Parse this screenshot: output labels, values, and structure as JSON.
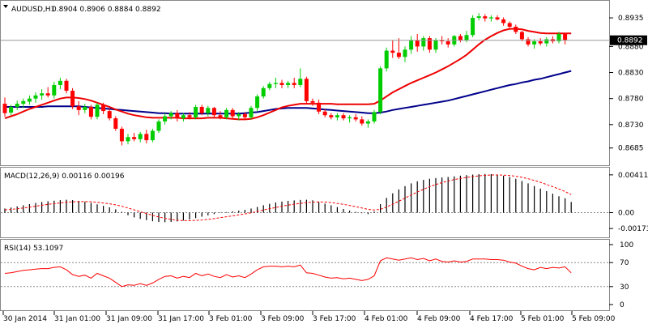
{
  "price_panel": {
    "title": "AUDUSD,H1",
    "ohlc": "0.8904 0.8906 0.8884 0.8892",
    "current_price": "0.8892",
    "right_axis_ticks": [
      "0.8935",
      "0.8880",
      "0.8830",
      "0.8780",
      "0.8730",
      "0.8685"
    ]
  },
  "macd_panel": {
    "title": "MACD(12,26,9) 0.00116 0.00196",
    "right_axis_ticks": [
      "0.00411",
      "0.00",
      "-0.00173"
    ]
  },
  "rsi_panel": {
    "title": "RSI(14) 53.1097",
    "right_axis_ticks": [
      "100",
      "70",
      "30",
      "0"
    ]
  },
  "time_axis": [
    "30 Jan 2014",
    "31 Jan 01:00",
    "31 Jan 09:00",
    "31 Jan 17:00",
    "3 Feb 01:00",
    "3 Feb 09:00",
    "3 Feb 17:00",
    "4 Feb 01:00",
    "4 Feb 09:00",
    "4 Feb 17:00",
    "5 Feb 01:00",
    "5 Feb 09:00"
  ],
  "colors": {
    "bull": "#00cc00",
    "bear": "#ff0000",
    "fast_ma": "#ee0000",
    "slow_ma": "#00008b",
    "histogram": "#000000",
    "signal": "#ff0000",
    "rsi": "#ff0000",
    "grid": "#888888"
  },
  "chart_data": [
    {
      "type": "candlestick",
      "title": "AUDUSD,H1",
      "ylim": [
        0.8655,
        0.896
      ],
      "candles": [
        {
          "o": 0.877,
          "h": 0.8782,
          "l": 0.8745,
          "c": 0.8752
        },
        {
          "o": 0.8753,
          "h": 0.8768,
          "l": 0.8748,
          "c": 0.8764
        },
        {
          "o": 0.8764,
          "h": 0.8776,
          "l": 0.8758,
          "c": 0.877
        },
        {
          "o": 0.877,
          "h": 0.878,
          "l": 0.8762,
          "c": 0.8775
        },
        {
          "o": 0.8774,
          "h": 0.8786,
          "l": 0.8768,
          "c": 0.878
        },
        {
          "o": 0.878,
          "h": 0.8792,
          "l": 0.8772,
          "c": 0.8786
        },
        {
          "o": 0.8786,
          "h": 0.8798,
          "l": 0.8778,
          "c": 0.879
        },
        {
          "o": 0.879,
          "h": 0.8802,
          "l": 0.8782,
          "c": 0.8786
        },
        {
          "o": 0.8786,
          "h": 0.8812,
          "l": 0.878,
          "c": 0.8806
        },
        {
          "o": 0.8806,
          "h": 0.882,
          "l": 0.8798,
          "c": 0.8814
        },
        {
          "o": 0.8814,
          "h": 0.8818,
          "l": 0.879,
          "c": 0.8795
        },
        {
          "o": 0.8795,
          "h": 0.88,
          "l": 0.876,
          "c": 0.8765
        },
        {
          "o": 0.8765,
          "h": 0.8775,
          "l": 0.8748,
          "c": 0.8758
        },
        {
          "o": 0.8758,
          "h": 0.877,
          "l": 0.8752,
          "c": 0.8764
        },
        {
          "o": 0.8764,
          "h": 0.8768,
          "l": 0.874,
          "c": 0.8745
        },
        {
          "o": 0.8745,
          "h": 0.8772,
          "l": 0.874,
          "c": 0.8768
        },
        {
          "o": 0.8768,
          "h": 0.8772,
          "l": 0.875,
          "c": 0.8756
        },
        {
          "o": 0.8756,
          "h": 0.876,
          "l": 0.8738,
          "c": 0.8742
        },
        {
          "o": 0.8742,
          "h": 0.8746,
          "l": 0.8718,
          "c": 0.8722
        },
        {
          "o": 0.8722,
          "h": 0.8726,
          "l": 0.869,
          "c": 0.8698
        },
        {
          "o": 0.8698,
          "h": 0.8712,
          "l": 0.8692,
          "c": 0.8706
        },
        {
          "o": 0.8706,
          "h": 0.8714,
          "l": 0.8698,
          "c": 0.8702
        },
        {
          "o": 0.8702,
          "h": 0.8716,
          "l": 0.8696,
          "c": 0.8712
        },
        {
          "o": 0.8712,
          "h": 0.872,
          "l": 0.8694,
          "c": 0.87
        },
        {
          "o": 0.87,
          "h": 0.8722,
          "l": 0.8696,
          "c": 0.8718
        },
        {
          "o": 0.8718,
          "h": 0.874,
          "l": 0.8714,
          "c": 0.8736
        },
        {
          "o": 0.8736,
          "h": 0.8752,
          "l": 0.873,
          "c": 0.8746
        },
        {
          "o": 0.8746,
          "h": 0.8756,
          "l": 0.874,
          "c": 0.8752
        },
        {
          "o": 0.8752,
          "h": 0.8758,
          "l": 0.8736,
          "c": 0.8742
        },
        {
          "o": 0.8742,
          "h": 0.8752,
          "l": 0.8736,
          "c": 0.8748
        },
        {
          "o": 0.8748,
          "h": 0.8754,
          "l": 0.874,
          "c": 0.8744
        },
        {
          "o": 0.8744,
          "h": 0.8768,
          "l": 0.874,
          "c": 0.8764
        },
        {
          "o": 0.8764,
          "h": 0.8768,
          "l": 0.8748,
          "c": 0.8752
        },
        {
          "o": 0.8752,
          "h": 0.8766,
          "l": 0.8746,
          "c": 0.8762
        },
        {
          "o": 0.8762,
          "h": 0.8764,
          "l": 0.8744,
          "c": 0.8748
        },
        {
          "o": 0.8748,
          "h": 0.8756,
          "l": 0.874,
          "c": 0.8744
        },
        {
          "o": 0.8744,
          "h": 0.8762,
          "l": 0.874,
          "c": 0.8758
        },
        {
          "o": 0.8758,
          "h": 0.8762,
          "l": 0.8742,
          "c": 0.8746
        },
        {
          "o": 0.8746,
          "h": 0.8754,
          "l": 0.8738,
          "c": 0.875
        },
        {
          "o": 0.875,
          "h": 0.8754,
          "l": 0.874,
          "c": 0.8744
        },
        {
          "o": 0.8744,
          "h": 0.8766,
          "l": 0.874,
          "c": 0.8762
        },
        {
          "o": 0.8762,
          "h": 0.8788,
          "l": 0.8756,
          "c": 0.8784
        },
        {
          "o": 0.8784,
          "h": 0.8804,
          "l": 0.878,
          "c": 0.88
        },
        {
          "o": 0.88,
          "h": 0.8812,
          "l": 0.8796,
          "c": 0.8808
        },
        {
          "o": 0.8808,
          "h": 0.882,
          "l": 0.88,
          "c": 0.881
        },
        {
          "o": 0.881,
          "h": 0.8816,
          "l": 0.88,
          "c": 0.8806
        },
        {
          "o": 0.8806,
          "h": 0.8814,
          "l": 0.88,
          "c": 0.881
        },
        {
          "o": 0.881,
          "h": 0.882,
          "l": 0.88,
          "c": 0.8806
        },
        {
          "o": 0.8806,
          "h": 0.8838,
          "l": 0.8802,
          "c": 0.8818
        },
        {
          "o": 0.8818,
          "h": 0.8822,
          "l": 0.877,
          "c": 0.8775
        },
        {
          "o": 0.8775,
          "h": 0.878,
          "l": 0.8766,
          "c": 0.8772
        },
        {
          "o": 0.8772,
          "h": 0.8778,
          "l": 0.875,
          "c": 0.8755
        },
        {
          "o": 0.8755,
          "h": 0.876,
          "l": 0.8744,
          "c": 0.8748
        },
        {
          "o": 0.8748,
          "h": 0.8752,
          "l": 0.874,
          "c": 0.8744
        },
        {
          "o": 0.8744,
          "h": 0.8752,
          "l": 0.8738,
          "c": 0.8748
        },
        {
          "o": 0.8748,
          "h": 0.8752,
          "l": 0.8738,
          "c": 0.8742
        },
        {
          "o": 0.8742,
          "h": 0.8748,
          "l": 0.8734,
          "c": 0.8744
        },
        {
          "o": 0.8744,
          "h": 0.875,
          "l": 0.8736,
          "c": 0.874
        },
        {
          "o": 0.874,
          "h": 0.8746,
          "l": 0.8728,
          "c": 0.8732
        },
        {
          "o": 0.8732,
          "h": 0.874,
          "l": 0.8724,
          "c": 0.8736
        },
        {
          "o": 0.8736,
          "h": 0.8758,
          "l": 0.8732,
          "c": 0.8754
        },
        {
          "o": 0.8754,
          "h": 0.8842,
          "l": 0.875,
          "c": 0.8838
        },
        {
          "o": 0.8838,
          "h": 0.8878,
          "l": 0.8832,
          "c": 0.8872
        },
        {
          "o": 0.8872,
          "h": 0.8892,
          "l": 0.8858,
          "c": 0.8868
        },
        {
          "o": 0.8868,
          "h": 0.8896,
          "l": 0.8856,
          "c": 0.886
        },
        {
          "o": 0.886,
          "h": 0.888,
          "l": 0.885,
          "c": 0.8874
        },
        {
          "o": 0.8874,
          "h": 0.89,
          "l": 0.8866,
          "c": 0.8892
        },
        {
          "o": 0.8892,
          "h": 0.8904,
          "l": 0.887,
          "c": 0.888
        },
        {
          "o": 0.888,
          "h": 0.89,
          "l": 0.8872,
          "c": 0.8896
        },
        {
          "o": 0.8896,
          "h": 0.89,
          "l": 0.8868,
          "c": 0.8874
        },
        {
          "o": 0.8874,
          "h": 0.8896,
          "l": 0.8868,
          "c": 0.8892
        },
        {
          "o": 0.8892,
          "h": 0.89,
          "l": 0.8884,
          "c": 0.889
        },
        {
          "o": 0.889,
          "h": 0.8896,
          "l": 0.8878,
          "c": 0.8884
        },
        {
          "o": 0.8884,
          "h": 0.8902,
          "l": 0.888,
          "c": 0.89
        },
        {
          "o": 0.89,
          "h": 0.8904,
          "l": 0.8888,
          "c": 0.8892
        },
        {
          "o": 0.8892,
          "h": 0.891,
          "l": 0.8888,
          "c": 0.8902
        },
        {
          "o": 0.8902,
          "h": 0.894,
          "l": 0.8898,
          "c": 0.8935
        },
        {
          "o": 0.8935,
          "h": 0.8944,
          "l": 0.893,
          "c": 0.8938
        },
        {
          "o": 0.8938,
          "h": 0.8942,
          "l": 0.8928,
          "c": 0.8934
        },
        {
          "o": 0.8934,
          "h": 0.894,
          "l": 0.8928,
          "c": 0.8936
        },
        {
          "o": 0.8936,
          "h": 0.894,
          "l": 0.893,
          "c": 0.8932
        },
        {
          "o": 0.8932,
          "h": 0.8936,
          "l": 0.892,
          "c": 0.8925
        },
        {
          "o": 0.8925,
          "h": 0.8928,
          "l": 0.8914,
          "c": 0.8918
        },
        {
          "o": 0.8918,
          "h": 0.8922,
          "l": 0.8904,
          "c": 0.8908
        },
        {
          "o": 0.8908,
          "h": 0.891,
          "l": 0.889,
          "c": 0.8894
        },
        {
          "o": 0.8894,
          "h": 0.8898,
          "l": 0.888,
          "c": 0.8884
        },
        {
          "o": 0.8884,
          "h": 0.8894,
          "l": 0.8876,
          "c": 0.889
        },
        {
          "o": 0.889,
          "h": 0.8896,
          "l": 0.8882,
          "c": 0.8886
        },
        {
          "o": 0.8886,
          "h": 0.8898,
          "l": 0.888,
          "c": 0.8894
        },
        {
          "o": 0.8894,
          "h": 0.89,
          "l": 0.8886,
          "c": 0.889
        },
        {
          "o": 0.889,
          "h": 0.8908,
          "l": 0.8886,
          "c": 0.8904
        },
        {
          "o": 0.8904,
          "h": 0.8906,
          "l": 0.8884,
          "c": 0.8892
        }
      ],
      "fast_ma": [
        0.8742,
        0.8746,
        0.875,
        0.8755,
        0.876,
        0.8764,
        0.8768,
        0.8772,
        0.8776,
        0.878,
        0.8782,
        0.8782,
        0.8781,
        0.8779,
        0.8776,
        0.8772,
        0.8768,
        0.8764,
        0.8759,
        0.8755,
        0.8751,
        0.8748,
        0.8746,
        0.8744,
        0.8743,
        0.8743,
        0.8743,
        0.8743,
        0.8743,
        0.8742,
        0.8742,
        0.8742,
        0.8742,
        0.8743,
        0.8743,
        0.8743,
        0.8742,
        0.8741,
        0.874,
        0.874,
        0.8741,
        0.8744,
        0.8748,
        0.8753,
        0.8758,
        0.8763,
        0.8766,
        0.8768,
        0.877,
        0.877,
        0.877,
        0.877,
        0.877,
        0.877,
        0.8769,
        0.8769,
        0.8769,
        0.8769,
        0.8769,
        0.8769,
        0.877,
        0.8776,
        0.8784,
        0.8792,
        0.8798,
        0.8804,
        0.881,
        0.8815,
        0.882,
        0.8825,
        0.883,
        0.8836,
        0.8842,
        0.8849,
        0.8856,
        0.8864,
        0.8874,
        0.8884,
        0.8893,
        0.89,
        0.8906,
        0.8911,
        0.8914,
        0.8914,
        0.8913,
        0.891,
        0.8908,
        0.8906,
        0.8905,
        0.8905,
        0.8905,
        0.8905,
        0.8905
      ],
      "slow_ma": [
        0.8764,
        0.8764,
        0.8764,
        0.8764,
        0.8764,
        0.8764,
        0.8764,
        0.8765,
        0.8765,
        0.8765,
        0.8765,
        0.8765,
        0.8765,
        0.8764,
        0.8763,
        0.8762,
        0.8761,
        0.876,
        0.8759,
        0.8758,
        0.8757,
        0.8756,
        0.8755,
        0.8754,
        0.8753,
        0.8752,
        0.8752,
        0.8751,
        0.8751,
        0.8751,
        0.8751,
        0.8751,
        0.8751,
        0.8751,
        0.8751,
        0.8751,
        0.8751,
        0.8751,
        0.8751,
        0.8752,
        0.8753,
        0.8754,
        0.8756,
        0.8758,
        0.876,
        0.8761,
        0.8762,
        0.8762,
        0.8762,
        0.8762,
        0.8761,
        0.876,
        0.8759,
        0.8758,
        0.8757,
        0.8756,
        0.8755,
        0.8754,
        0.8753,
        0.8752,
        0.8752,
        0.8753,
        0.8755,
        0.8758,
        0.876,
        0.8762,
        0.8764,
        0.8766,
        0.8768,
        0.877,
        0.8772,
        0.8774,
        0.8776,
        0.8779,
        0.8782,
        0.8785,
        0.8788,
        0.8791,
        0.8794,
        0.8797,
        0.88,
        0.8803,
        0.8806,
        0.8808,
        0.8811,
        0.8813,
        0.8816,
        0.8818,
        0.8821,
        0.8824,
        0.8827,
        0.883,
        0.8833
      ]
    },
    {
      "type": "bar",
      "title": "MACD(12,26,9) 0.00116 0.00196",
      "ylim": [
        -0.0026,
        0.00445
      ],
      "histogram": [
        0.00045,
        0.00055,
        0.00068,
        0.0008,
        0.00092,
        0.00105,
        0.00115,
        0.00124,
        0.0013,
        0.00136,
        0.0014,
        0.00136,
        0.00128,
        0.00118,
        0.00106,
        0.0009,
        0.00074,
        0.00058,
        0.00036,
        8e-05,
        -0.00028,
        -0.00052,
        -0.00068,
        -0.00082,
        -0.00094,
        -0.00102,
        -0.00104,
        -0.00102,
        -0.00096,
        -0.00086,
        -0.00074,
        -0.0006,
        -0.00044,
        -0.0003,
        -0.00016,
        -4e-05,
        6e-05,
        0.00014,
        0.00022,
        0.0003,
        0.00044,
        0.00062,
        0.0008,
        0.00096,
        0.0011,
        0.0012,
        0.00128,
        0.00133,
        0.00138,
        0.0014,
        0.00134,
        0.00116,
        0.00098,
        0.0008,
        0.0006,
        0.0004,
        0.00022,
        8e-05,
        -6e-05,
        -0.00016,
        0.00012,
        0.00092,
        0.0016,
        0.0021,
        0.00252,
        0.00288,
        0.00318,
        0.0034,
        0.00356,
        0.00368,
        0.00376,
        0.00382,
        0.00388,
        0.00395,
        0.00402,
        0.00408,
        0.00414,
        0.00418,
        0.0042,
        0.00418,
        0.00412,
        0.00402,
        0.00388,
        0.00368,
        0.00344,
        0.00318,
        0.0029,
        0.00262,
        0.00234,
        0.00206,
        0.00178,
        0.00156,
        0.00116
      ],
      "signal": [
        0.0003,
        0.00035,
        0.00042,
        0.0005,
        0.0006,
        0.0007,
        0.0008,
        0.0009,
        0.00098,
        0.00106,
        0.00113,
        0.00118,
        0.0012,
        0.0012,
        0.00118,
        0.00113,
        0.00105,
        0.00096,
        0.00085,
        0.0007,
        0.0005,
        0.0003,
        0.0001,
        -0.0001,
        -0.0003,
        -0.00048,
        -0.00062,
        -0.00074,
        -0.00083,
        -0.00087,
        -0.00087,
        -0.00085,
        -0.0008,
        -0.00073,
        -0.00065,
        -0.00055,
        -0.00045,
        -0.00035,
        -0.00025,
        -0.00014,
        -2e-05,
        0.00012,
        0.00028,
        0.00042,
        0.00056,
        0.0007,
        0.00082,
        0.00092,
        0.001,
        0.00108,
        0.00114,
        0.00116,
        0.00115,
        0.0011,
        0.001,
        0.0009,
        0.00078,
        0.00064,
        0.0005,
        0.00036,
        0.00028,
        0.00036,
        0.00062,
        0.00092,
        0.00124,
        0.00158,
        0.00192,
        0.00224,
        0.00254,
        0.00282,
        0.00306,
        0.00326,
        0.00344,
        0.0036,
        0.00372,
        0.00382,
        0.00392,
        0.004,
        0.00406,
        0.0041,
        0.0041,
        0.00408,
        0.00404,
        0.00396,
        0.00384,
        0.00368,
        0.0035,
        0.0033,
        0.00306,
        0.00282,
        0.00256,
        0.0023,
        0.00196
      ]
    },
    {
      "type": "line",
      "title": "RSI(14) 53.1097",
      "ylim": [
        0,
        100
      ],
      "values": [
        52,
        53,
        55,
        57,
        58,
        59,
        60,
        60,
        62,
        63,
        58,
        50,
        47,
        49,
        44,
        52,
        48,
        44,
        37,
        30,
        33,
        32,
        35,
        32,
        36,
        42,
        47,
        48,
        44,
        47,
        45,
        52,
        48,
        51,
        47,
        45,
        50,
        46,
        48,
        45,
        51,
        58,
        63,
        64,
        64,
        63,
        64,
        63,
        66,
        53,
        52,
        49,
        46,
        44,
        45,
        43,
        44,
        42,
        40,
        42,
        48,
        73,
        78,
        76,
        74,
        76,
        78,
        75,
        77,
        73,
        76,
        72,
        71,
        73,
        71,
        72,
        76,
        76,
        76,
        75,
        75,
        74,
        71,
        69,
        64,
        60,
        58,
        62,
        60,
        62,
        61,
        63,
        53
      ]
    }
  ]
}
